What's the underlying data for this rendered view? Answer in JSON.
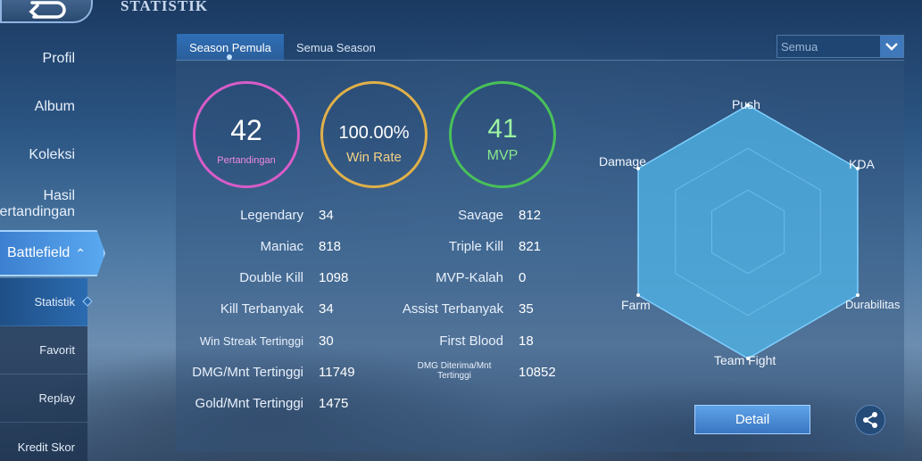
{
  "header": {
    "title": "STATISTIK"
  },
  "sidebar": {
    "items": [
      {
        "label": "Profil"
      },
      {
        "label": "Album"
      },
      {
        "label": "Koleksi"
      },
      {
        "label_line1": "Hasil",
        "label_line2": "Pertandingan"
      }
    ],
    "battlefield": {
      "label": "Battlefield"
    },
    "subitems": [
      {
        "label": "Statistik"
      },
      {
        "label": "Favorit"
      },
      {
        "label": "Replay"
      },
      {
        "label": "Kredit Skor"
      }
    ]
  },
  "tabs": [
    {
      "label": "Season Pemula",
      "active": true
    },
    {
      "label": "Semua Season",
      "active": false
    }
  ],
  "filter": {
    "selected": "Semua"
  },
  "summary": {
    "matches": {
      "value": "42",
      "label": "Pertandingan"
    },
    "win_rate": {
      "value": "100.00%",
      "label": "Win Rate"
    },
    "mvp": {
      "value": "41",
      "label": "MVP"
    }
  },
  "stats_left": [
    {
      "label": "Legendary",
      "value": "34"
    },
    {
      "label": "Maniac",
      "value": "818"
    },
    {
      "label": "Double Kill",
      "value": "1098"
    },
    {
      "label": "Kill Terbanyak",
      "value": "34"
    },
    {
      "label": "Win Streak Tertinggi",
      "value": "30"
    },
    {
      "label": "DMG/Mnt Tertinggi",
      "value": "11749"
    },
    {
      "label": "Gold/Mnt Tertinggi",
      "value": "1475"
    }
  ],
  "stats_right": [
    {
      "label": "Savage",
      "value": "812"
    },
    {
      "label": "Triple Kill",
      "value": "821"
    },
    {
      "label": "MVP-Kalah",
      "value": "0"
    },
    {
      "label": "Assist Terbanyak",
      "value": "35"
    },
    {
      "label": "First Blood",
      "value": "18"
    },
    {
      "label_line1": "DMG Diterima/Mnt",
      "label_line2": "Tertinggi",
      "value": "10852"
    }
  ],
  "radar": {
    "axes": [
      "Push",
      "KDA",
      "Durabilitas",
      "Team Fight",
      "Farm",
      "Damage"
    ],
    "values": [
      1,
      1,
      1,
      1,
      1,
      1
    ],
    "fill_color": "#4fb3e6"
  },
  "detail_button": {
    "label": "Detail"
  },
  "colors": {
    "matches_ring": "#d85cc8",
    "winrate_ring": "#e0b049",
    "mvp_ring": "#49c159",
    "accent": "#3c7fd0"
  },
  "icons": {
    "back": "back-arrow-icon",
    "dropdown": "chevron-down-icon",
    "share": "share-icon",
    "battlefield_caret": "chevron-up-icon"
  }
}
